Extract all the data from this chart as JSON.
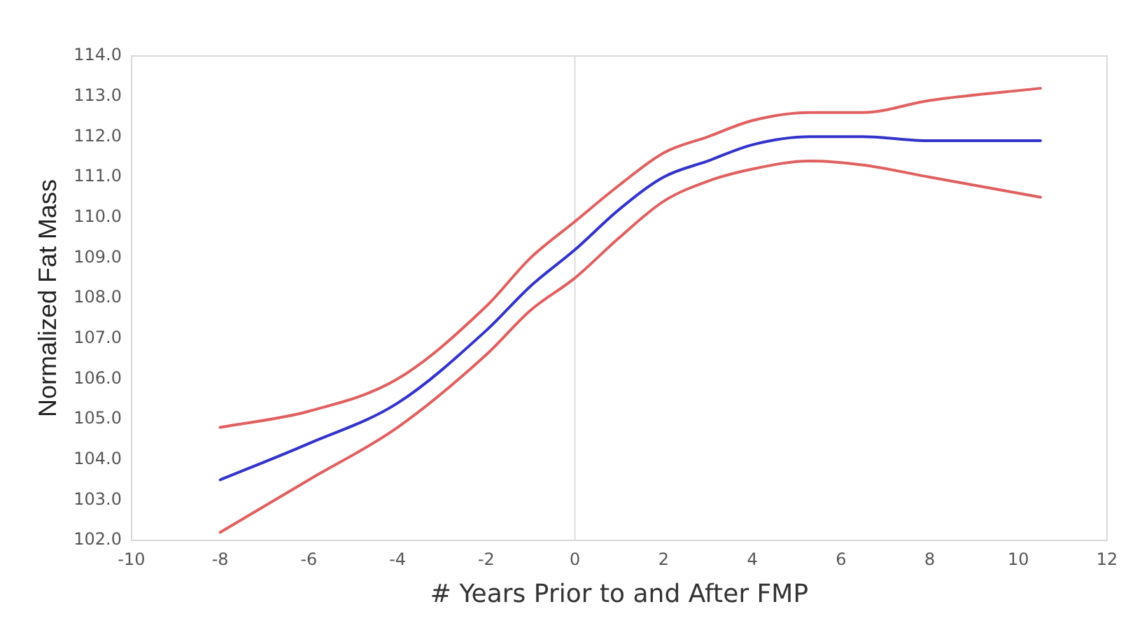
{
  "chart_data": {
    "type": "line",
    "xlabel": "# Years Prior to and After FMP",
    "ylabel": "Normalized Fat Mass",
    "xlim": [
      -10,
      12
    ],
    "xticks": [
      -10,
      -8,
      -6,
      -4,
      -2,
      0,
      2,
      4,
      6,
      8,
      10,
      12
    ],
    "ylim": [
      102,
      114
    ],
    "yticks": [
      {
        "value": 102,
        "label": "102.0"
      },
      {
        "value": 103,
        "label": "103.0"
      },
      {
        "value": 104,
        "label": "104.0"
      },
      {
        "value": 105,
        "label": "105.0"
      },
      {
        "value": 106,
        "label": "106.0"
      },
      {
        "value": 107,
        "label": "107.0"
      },
      {
        "value": 108,
        "label": "108.0"
      },
      {
        "value": 109,
        "label": "109.0"
      },
      {
        "value": 110,
        "label": "110.0"
      },
      {
        "value": 111,
        "label": "111.0"
      },
      {
        "value": 112,
        "label": "112.0"
      },
      {
        "value": 113,
        "label": "113.0"
      },
      {
        "value": 114,
        "label": "114.0"
      }
    ],
    "grid": false,
    "legend": false,
    "marker": "none",
    "line_style": "solid",
    "ref_lines": [
      {
        "axis": "x",
        "value": 0,
        "color": "#dddddd"
      }
    ],
    "series": [
      {
        "color": "#e06060",
        "x": [
          -8,
          -6,
          -4,
          -2,
          -1,
          0,
          1,
          2,
          3,
          4,
          5.3,
          6.5,
          8,
          10.5
        ],
        "values": [
          104.8,
          105.2,
          106.0,
          107.8,
          109.0,
          109.9,
          110.8,
          111.6,
          112.0,
          112.4,
          112.6,
          112.6,
          112.9,
          113.2
        ]
      },
      {
        "color": "#3333cc",
        "x": [
          -8,
          -6,
          -4,
          -2,
          -1,
          0,
          1,
          2,
          3,
          4,
          5.3,
          6.5,
          8,
          10.5
        ],
        "values": [
          103.5,
          104.4,
          105.4,
          107.2,
          108.3,
          109.2,
          110.2,
          111.0,
          111.4,
          111.8,
          112.0,
          112.0,
          111.9,
          111.9
        ]
      },
      {
        "color": "#e06060",
        "x": [
          -8,
          -6,
          -4,
          -2,
          -1,
          0,
          1,
          2,
          3,
          4,
          5.3,
          6.5,
          8,
          10.5
        ],
        "values": [
          102.2,
          103.5,
          104.8,
          106.6,
          107.7,
          108.5,
          109.5,
          110.4,
          110.9,
          111.2,
          111.4,
          111.3,
          111.0,
          110.5
        ]
      }
    ]
  }
}
